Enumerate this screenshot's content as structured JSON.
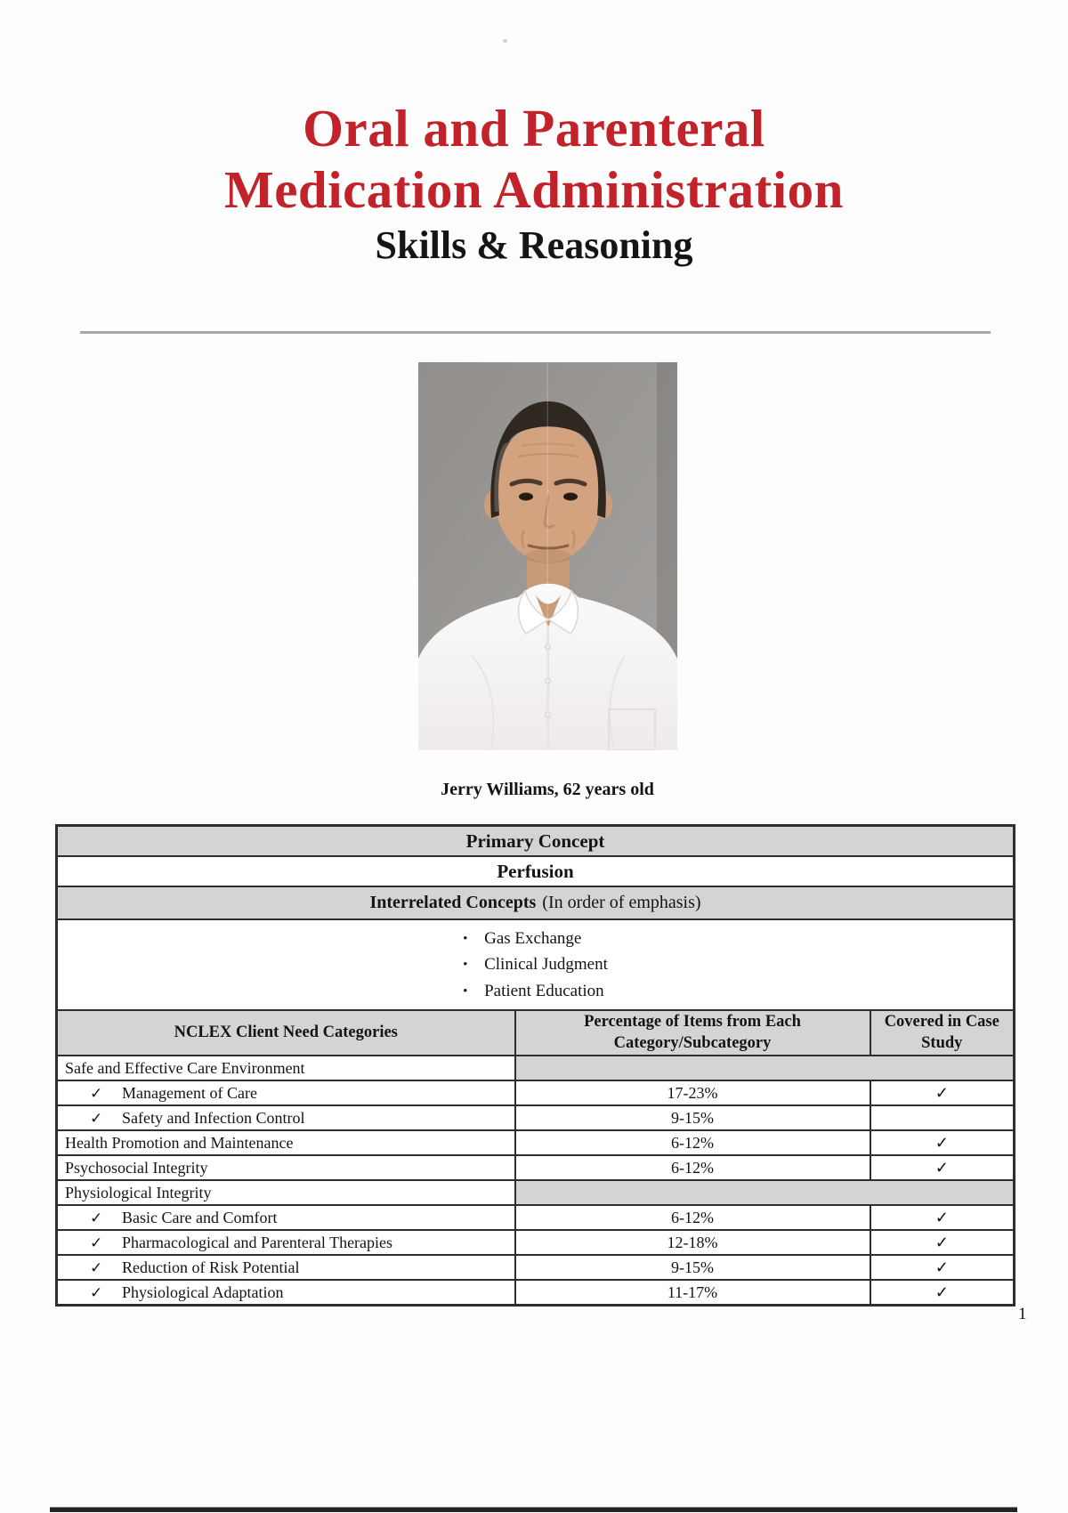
{
  "document": {
    "title_line1": "Oral and Parenteral",
    "title_line2": "Medication Administration",
    "subtitle": "Skills & Reasoning",
    "page_number": "1"
  },
  "photo": {
    "caption": "Jerry Williams, 62 years old"
  },
  "glyphs": {
    "check": "✓",
    "bullet": "•"
  },
  "colors": {
    "title_red": "#c2222a",
    "band_gray": "#d4d4d4",
    "table_border": "#2e2e2e"
  },
  "concept_table": {
    "primary_concept_header": "Primary Concept",
    "primary_concept_value": "Perfusion",
    "interrelated_header": "Interrelated Concepts",
    "interrelated_note": "(In order of emphasis)",
    "interrelated_items": [
      "Gas Exchange",
      "Clinical Judgment",
      "Patient Education"
    ],
    "columns": [
      "NCLEX Client Need Categories",
      "Percentage of Items from Each Category/Subcategory",
      "Covered in Case Study"
    ],
    "rows": [
      {
        "label": "Safe and Effective Care Environment",
        "sub": false,
        "merged": true,
        "percent": "",
        "covered": false
      },
      {
        "label": "Management of Care",
        "sub": true,
        "merged": false,
        "percent": "17-23%",
        "covered": true
      },
      {
        "label": "Safety and Infection Control",
        "sub": true,
        "merged": false,
        "percent": "9-15%",
        "covered": false
      },
      {
        "label": "Health Promotion and Maintenance",
        "sub": false,
        "merged": false,
        "percent": "6-12%",
        "covered": true
      },
      {
        "label": "Psychosocial Integrity",
        "sub": false,
        "merged": false,
        "percent": "6-12%",
        "covered": true
      },
      {
        "label": "Physiological Integrity",
        "sub": false,
        "merged": true,
        "percent": "",
        "covered": false
      },
      {
        "label": "Basic Care and Comfort",
        "sub": true,
        "merged": false,
        "percent": "6-12%",
        "covered": true
      },
      {
        "label": "Pharmacological and Parenteral Therapies",
        "sub": true,
        "merged": false,
        "percent": "12-18%",
        "covered": true
      },
      {
        "label": "Reduction of Risk Potential",
        "sub": true,
        "merged": false,
        "percent": "9-15%",
        "covered": true
      },
      {
        "label": "Physiological Adaptation",
        "sub": true,
        "merged": false,
        "percent": "11-17%",
        "covered": true
      }
    ]
  }
}
